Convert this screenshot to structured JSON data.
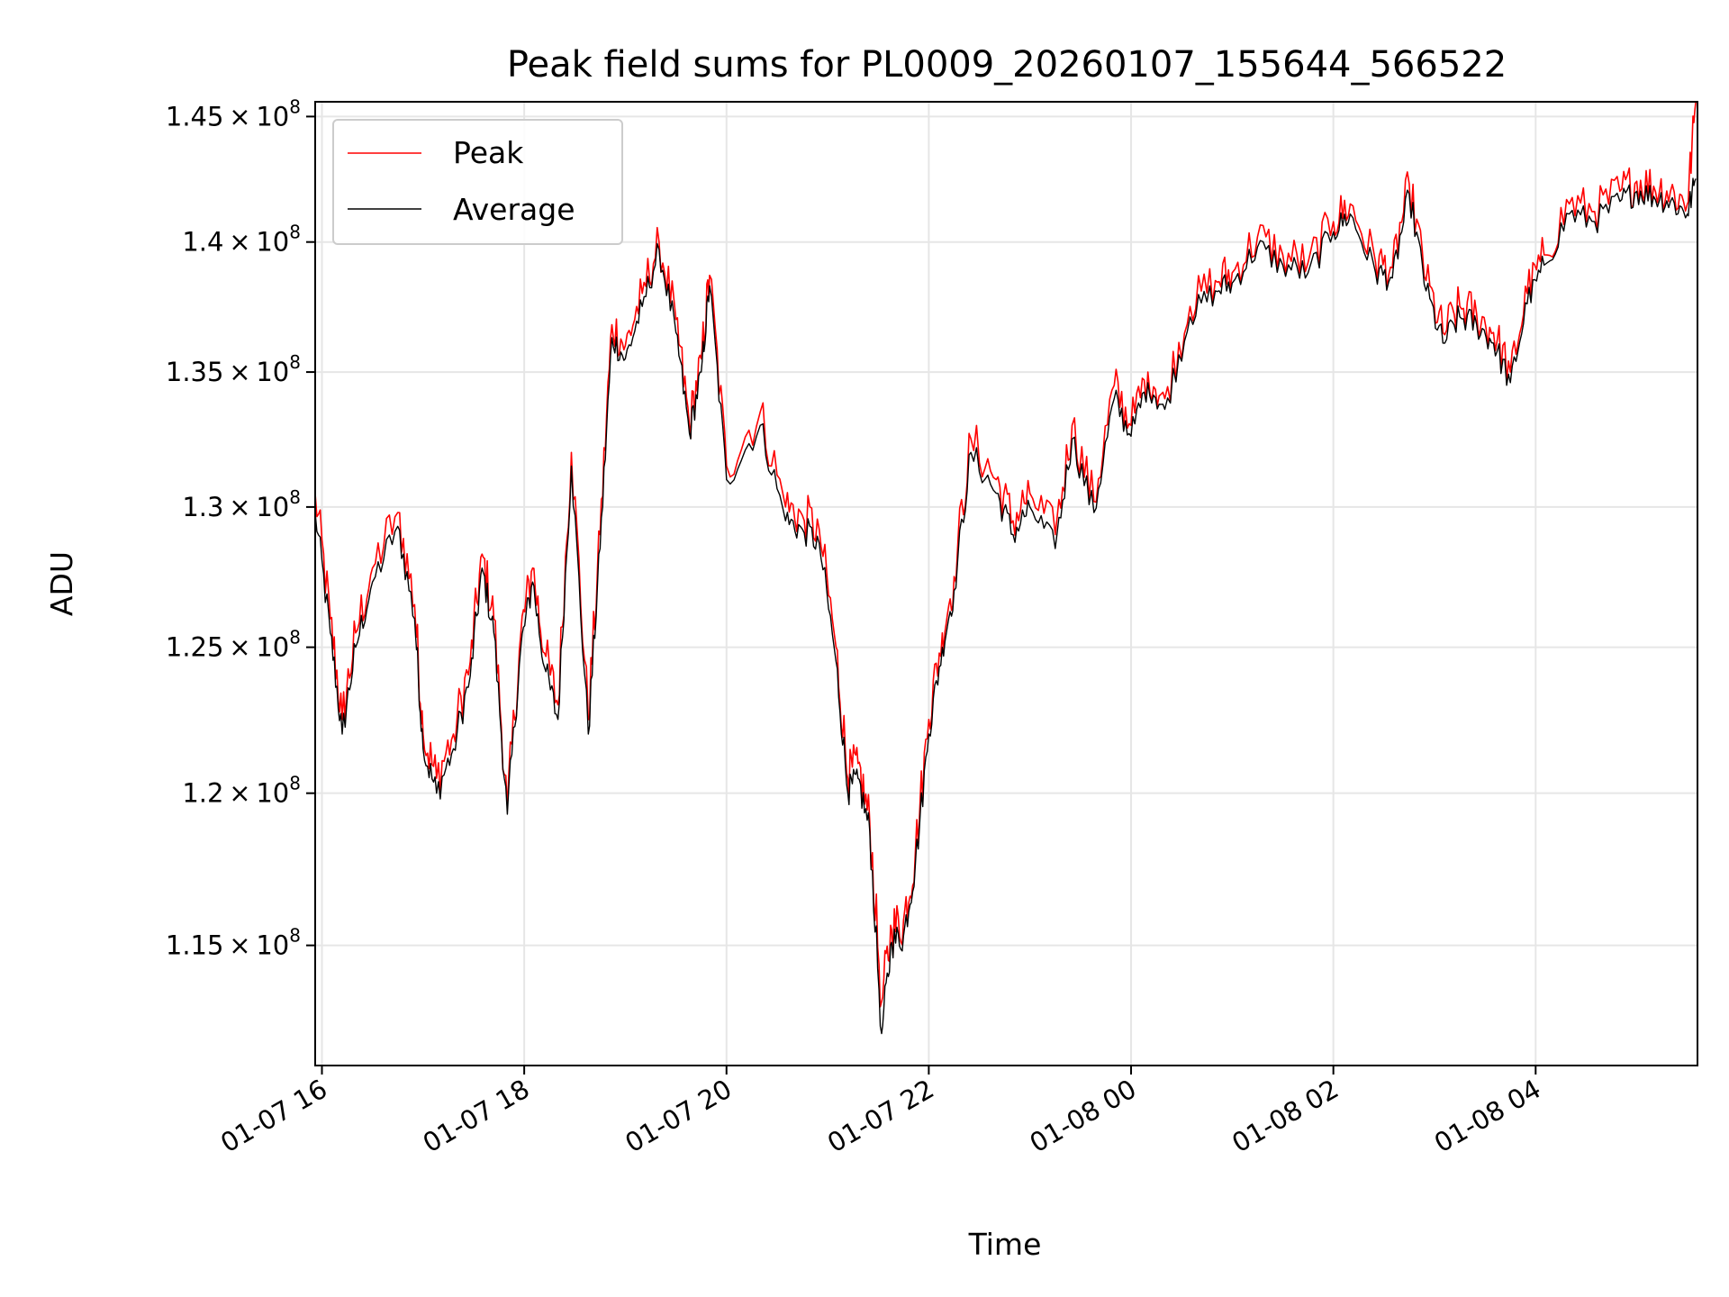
{
  "chart_data": {
    "type": "line",
    "title": "Peak field sums for PL0009_20260107_155644_566522",
    "xlabel": "Time",
    "ylabel": "ADU",
    "xlim": [
      "2026-01-07 15:56",
      "2026-01-08 05:36"
    ],
    "ylim": [
      111200000,
      145600000
    ],
    "yscale": "log",
    "grid": true,
    "legend": "top-left",
    "x_ticks": [
      "01-07 16",
      "01-07 18",
      "01-07 20",
      "01-07 22",
      "01-08 00",
      "01-08 02",
      "01-08 04"
    ],
    "y_ticks": [
      {
        "value": 115000000,
        "mantissa": "1.15",
        "exp": "8"
      },
      {
        "value": 120000000,
        "mantissa": "1.2",
        "exp": "8"
      },
      {
        "value": 125000000,
        "mantissa": "1.25",
        "exp": "8"
      },
      {
        "value": 130000000,
        "mantissa": "1.3",
        "exp": "8"
      },
      {
        "value": 135000000,
        "mantissa": "1.35",
        "exp": "8"
      },
      {
        "value": 140000000,
        "mantissa": "1.4",
        "exp": "8"
      },
      {
        "value": 145000000,
        "mantissa": "1.45",
        "exp": "8"
      }
    ],
    "x": [
      "2026-01-07 15:56",
      "2026-01-07 16:05",
      "2026-01-07 16:12",
      "2026-01-07 16:20",
      "2026-01-07 16:30",
      "2026-01-07 16:45",
      "2026-01-07 16:55",
      "2026-01-07 17:00",
      "2026-01-07 17:08",
      "2026-01-07 17:18",
      "2026-01-07 17:28",
      "2026-01-07 17:35",
      "2026-01-07 17:42",
      "2026-01-07 17:50",
      "2026-01-07 17:58",
      "2026-01-07 18:05",
      "2026-01-07 18:12",
      "2026-01-07 18:20",
      "2026-01-07 18:28",
      "2026-01-07 18:38",
      "2026-01-07 18:45",
      "2026-01-07 18:52",
      "2026-01-07 19:00",
      "2026-01-07 19:10",
      "2026-01-07 19:20",
      "2026-01-07 19:30",
      "2026-01-07 19:38",
      "2026-01-07 19:45",
      "2026-01-07 19:50",
      "2026-01-07 20:00",
      "2026-01-07 20:20",
      "2026-01-07 20:35",
      "2026-01-07 20:45",
      "2026-01-07 20:55",
      "2026-01-07 21:05",
      "2026-01-07 21:12",
      "2026-01-07 21:18",
      "2026-01-07 21:25",
      "2026-01-07 21:32",
      "2026-01-07 21:38",
      "2026-01-07 21:45",
      "2026-01-07 21:52",
      "2026-01-07 22:00",
      "2026-01-07 22:08",
      "2026-01-07 22:15",
      "2026-01-07 22:25",
      "2026-01-07 22:40",
      "2026-01-07 22:50",
      "2026-01-07 23:00",
      "2026-01-07 23:15",
      "2026-01-07 23:25",
      "2026-01-07 23:38",
      "2026-01-07 23:50",
      "2026-01-08 00:00",
      "2026-01-08 00:10",
      "2026-01-08 00:20",
      "2026-01-08 00:35",
      "2026-01-08 00:50",
      "2026-01-08 01:00",
      "2026-01-08 01:15",
      "2026-01-08 01:30",
      "2026-01-08 01:45",
      "2026-01-08 02:00",
      "2026-01-08 02:10",
      "2026-01-08 02:25",
      "2026-01-08 02:35",
      "2026-01-08 02:45",
      "2026-01-08 02:55",
      "2026-01-08 03:05",
      "2026-01-08 03:15",
      "2026-01-08 03:25",
      "2026-01-08 03:35",
      "2026-01-08 03:45",
      "2026-01-08 03:55",
      "2026-01-08 04:05",
      "2026-01-08 04:20",
      "2026-01-08 04:35",
      "2026-01-08 04:50",
      "2026-01-08 05:00",
      "2026-01-08 05:10",
      "2026-01-08 05:20",
      "2026-01-08 05:30",
      "2026-01-08 05:35"
    ],
    "series": [
      {
        "name": "Peak",
        "color": "#ff0000",
        "values": [
          130500000,
          126000000,
          122500000,
          125500000,
          127800000,
          129800000,
          126500000,
          122000000,
          120500000,
          122000000,
          124500000,
          128300000,
          126000000,
          119500000,
          125500000,
          127800000,
          124800000,
          123000000,
          132000000,
          122500000,
          129000000,
          136800000,
          136000000,
          138000000,
          140000000,
          137000000,
          133000000,
          135500000,
          138700000,
          131500000,
          133500000,
          130000000,
          129700000,
          129200000,
          125000000,
          120500000,
          121000000,
          119000000,
          113200000,
          115500000,
          115800000,
          118000000,
          122500000,
          125500000,
          127500000,
          132500000,
          131000000,
          129500000,
          130500000,
          129000000,
          133000000,
          130200000,
          134500000,
          133000000,
          135000000,
          134000000,
          137500000,
          138500000,
          138800000,
          140200000,
          139500000,
          139200000,
          140800000,
          141500000,
          139200000,
          139000000,
          142300000,
          138500000,
          136500000,
          137500000,
          137200000,
          136500000,
          135000000,
          138000000,
          139500000,
          141500000,
          141200000,
          142000000,
          142400000,
          142200000,
          142000000,
          141500000,
          145600000
        ]
      },
      {
        "name": "Average",
        "color": "#000000",
        "values": [
          129800000,
          125500000,
          122000000,
          125000000,
          127300000,
          129300000,
          126000000,
          121500000,
          120000000,
          121500000,
          124000000,
          127800000,
          125500000,
          119300000,
          125000000,
          127300000,
          124300000,
          122500000,
          131500000,
          122000000,
          128500000,
          136300000,
          135500000,
          137500000,
          139700000,
          136500000,
          132700000,
          135000000,
          138300000,
          131000000,
          133000000,
          129500000,
          129200000,
          128700000,
          124500000,
          120000000,
          120500000,
          118700000,
          112200000,
          115100000,
          115300000,
          117600000,
          122000000,
          125000000,
          127000000,
          132000000,
          130500000,
          129000000,
          130000000,
          128500000,
          132500000,
          129800000,
          134000000,
          132600000,
          134600000,
          133600000,
          137100000,
          138100000,
          138400000,
          139800000,
          139100000,
          138800000,
          140400000,
          141100000,
          138800000,
          138600000,
          141900000,
          138100000,
          136100000,
          137100000,
          136800000,
          136100000,
          134600000,
          137600000,
          139100000,
          141100000,
          140800000,
          141600000,
          142000000,
          141800000,
          141600000,
          141100000,
          142500000
        ]
      }
    ]
  }
}
